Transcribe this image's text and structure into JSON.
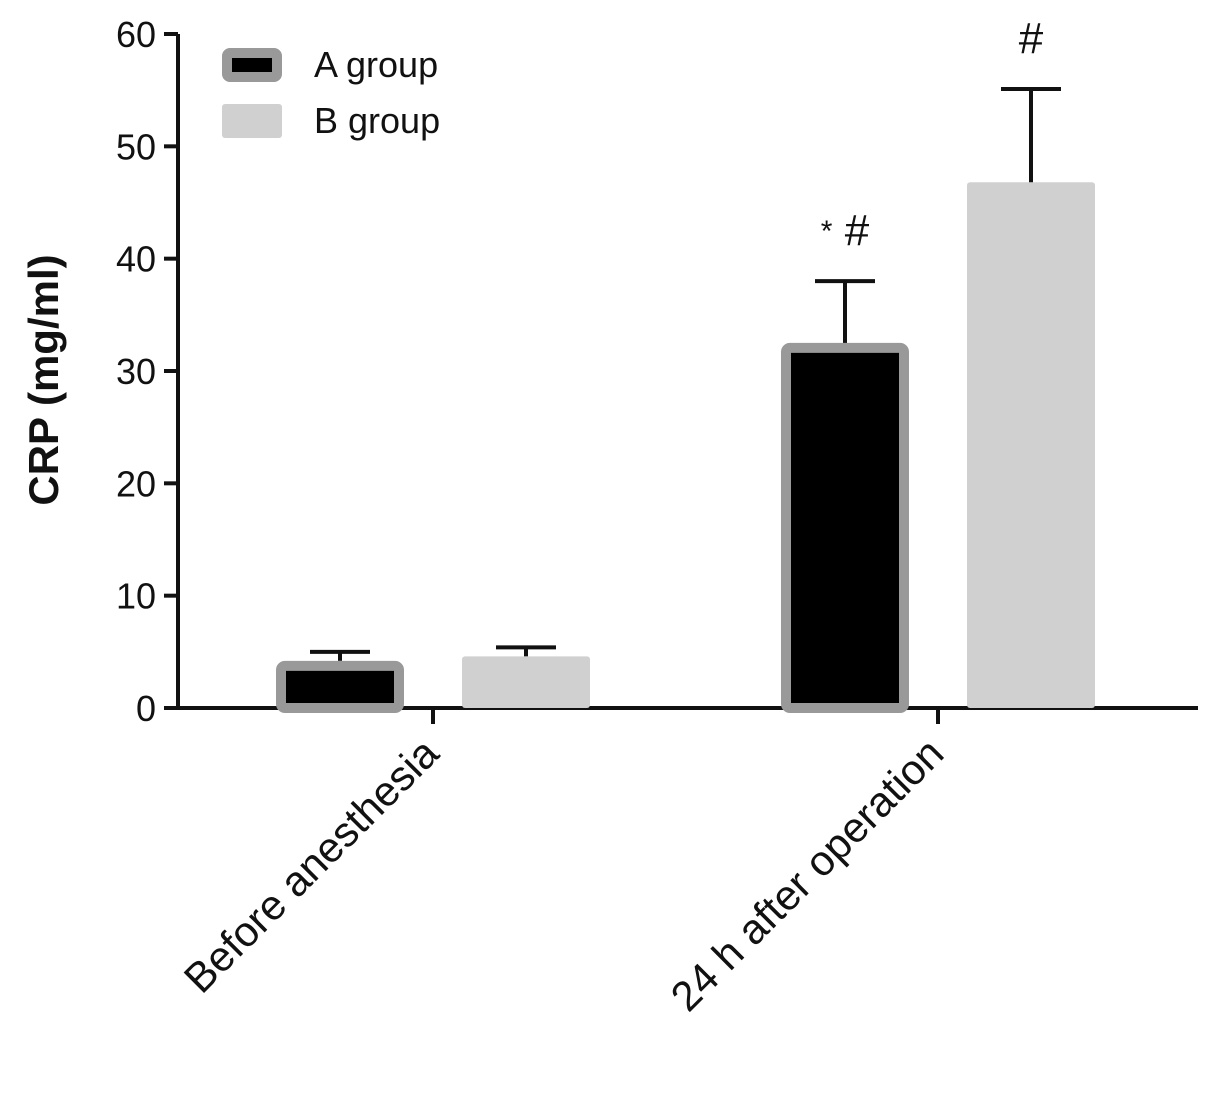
{
  "chart_data": {
    "type": "bar",
    "title": "",
    "xlabel": "",
    "ylabel": "CRP (mg/ml)",
    "ylim": [
      0,
      60
    ],
    "yticks": [
      0,
      10,
      20,
      30,
      40,
      50,
      60
    ],
    "categories": [
      "Before anesthesia",
      "24 h after operation"
    ],
    "series": [
      {
        "name": "A group",
        "fill": "#000000",
        "stroke": "#999999",
        "values": [
          4.2,
          32.5
        ],
        "errors": [
          0.8,
          5.5
        ]
      },
      {
        "name": "B group",
        "fill": "#d0d0d0",
        "stroke": "#d0d0d0",
        "values": [
          4.6,
          46.8
        ],
        "errors": [
          0.8,
          8.3
        ]
      }
    ],
    "annotations": [
      {
        "category": 1,
        "series": 0,
        "text": "* #"
      },
      {
        "category": 1,
        "series": 1,
        "text": "#"
      }
    ],
    "legend": {
      "position": "top-left"
    },
    "grid": false
  }
}
